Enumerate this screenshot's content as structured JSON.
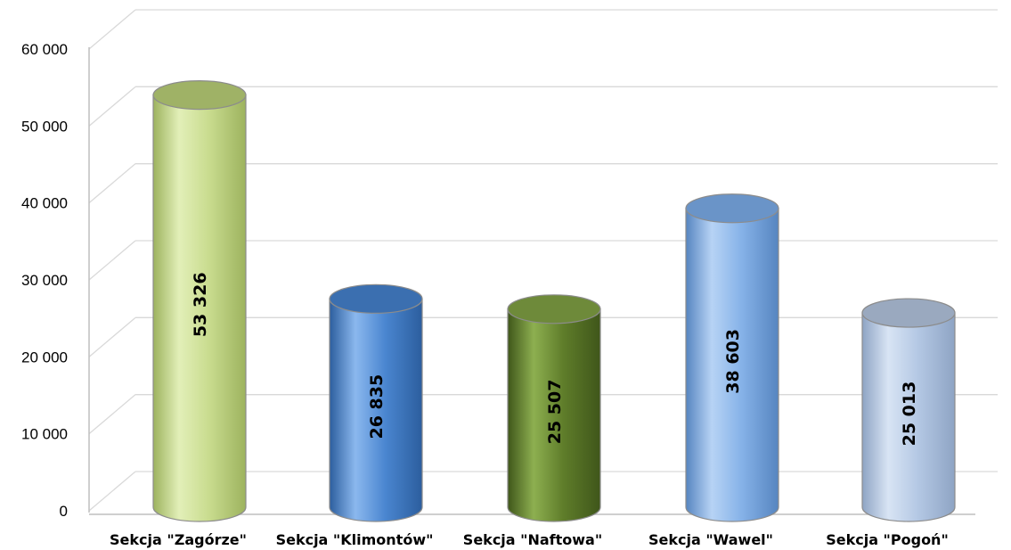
{
  "chart_data": {
    "type": "bar",
    "shape": "cylinder-3d",
    "categories": [
      "Sekcja \"Zagórze\"",
      "Sekcja \"Klimontów\"",
      "Sekcja \"Naftowa\"",
      "Sekcja \"Wawel\"",
      "Sekcja \"Pogoń\""
    ],
    "values": [
      53326,
      26835,
      25507,
      38603,
      25013
    ],
    "data_labels": [
      "53 326",
      "26 835",
      "25 507",
      "38 603",
      "25 013"
    ],
    "y_ticks": [
      "0",
      "10 000",
      "20 000",
      "30 000",
      "40 000",
      "50 000",
      "60 000"
    ],
    "y_tick_values": [
      0,
      10000,
      20000,
      30000,
      40000,
      50000,
      60000
    ],
    "ylim": [
      0,
      60000
    ],
    "grid": true,
    "legend": "none",
    "colors": {
      "bars": [
        "#c9dc8f",
        "#4a86d0",
        "#5f7d2a",
        "#86b2e8",
        "#b4c8e4"
      ],
      "bars_light": [
        "#e2efb8",
        "#8bb8ee",
        "#8daf50",
        "#b7d3f5",
        "#d8e4f4"
      ],
      "bars_dark": [
        "#9db35e",
        "#2c5e9e",
        "#3f561a",
        "#5685c0",
        "#8ea4c4"
      ],
      "tops": [
        "#9fb266",
        "#3b6fb0",
        "#6e8a3a",
        "#6a94c8",
        "#9aa9bf"
      ],
      "grid": "#d9d9d9",
      "axis": "#bfbfbf"
    }
  }
}
